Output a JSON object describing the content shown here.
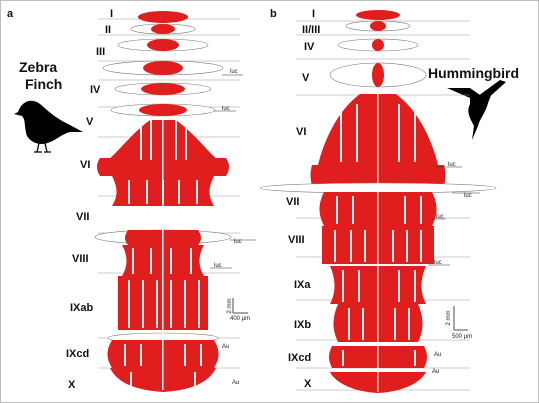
{
  "panels": [
    {
      "letter": "a",
      "bird_name_line1": "Zebra",
      "bird_name_line2": "Finch",
      "lobules": [
        "I",
        "II",
        "III",
        "IV",
        "V",
        "VI",
        "VII",
        "VIII",
        "IXab",
        "IXcd",
        "X"
      ],
      "annotations": {
        "luc": "luc",
        "au": "Au"
      },
      "scale": {
        "vertical": "2 mm",
        "horizontal": "400 µm"
      }
    },
    {
      "letter": "b",
      "bird_name_line1": "Hummingbird",
      "lobules": [
        "I",
        "II/III",
        "IV",
        "V",
        "VI",
        "VII",
        "VIII",
        "IXa",
        "IXb",
        "IXcd",
        "X"
      ],
      "annotations": {
        "luc": "luc",
        "au": "Au"
      },
      "scale": {
        "vertical": "2 mm",
        "horizontal": "500 µm"
      }
    }
  ],
  "colors": {
    "stain": "#e01e1e",
    "background": "#ffffff",
    "silhouette": "#000000"
  },
  "icons": [
    "zebra-finch-silhouette-icon",
    "hummingbird-silhouette-icon"
  ]
}
